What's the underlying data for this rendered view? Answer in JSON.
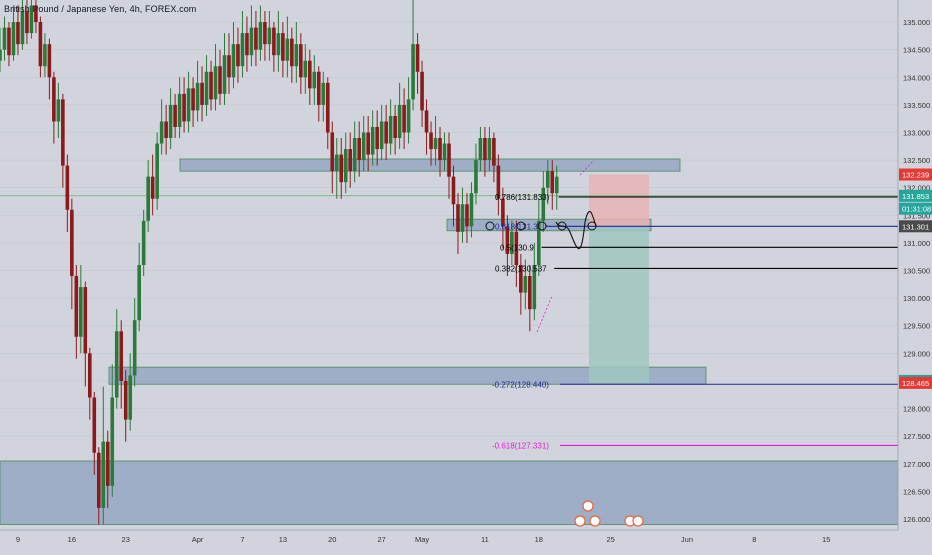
{
  "header": {
    "symbol_title": "British Pound / Japanese Yen, 4h, FOREX.com"
  },
  "colors": {
    "background": "#d1d4dc",
    "up_candle": "#2a7a3a",
    "down_candle": "#8b1a1a",
    "zone_fill": "#8da2c0",
    "zone_border": "#4a8a5a",
    "stop_fill": "#e9b3b5",
    "target_fill": "#9fc7c0",
    "fib_line": "#000000",
    "fib_blue": "#1e2a8f",
    "fib_magenta": "#e020d0",
    "price_red": "#e53935",
    "price_green": "#26a69a"
  },
  "chart_data": {
    "type": "candlestick",
    "symbol": "British Pound / Japanese Yen",
    "interval": "4h",
    "source": "FOREX.com",
    "ylim": [
      125.8,
      135.4
    ],
    "x_range": [
      0,
      100
    ],
    "x_ticks": [
      {
        "label": "9",
        "x": 2
      },
      {
        "label": "16",
        "x": 8
      },
      {
        "label": "23",
        "x": 14
      },
      {
        "label": "Apr",
        "x": 22
      },
      {
        "label": "7",
        "x": 27
      },
      {
        "label": "13",
        "x": 31.5
      },
      {
        "label": "20",
        "x": 37
      },
      {
        "label": "27",
        "x": 42.5
      },
      {
        "label": "May",
        "x": 47
      },
      {
        "label": "11",
        "x": 54
      },
      {
        "label": "18",
        "x": 60
      },
      {
        "label": "25",
        "x": 68
      },
      {
        "label": "Jun",
        "x": 76.5
      },
      {
        "label": "8",
        "x": 84
      },
      {
        "label": "15",
        "x": 92
      }
    ],
    "y_ticks": [
      "135.000",
      "134.500",
      "134.000",
      "133.500",
      "133.000",
      "132.500",
      "132.000",
      "131.500",
      "131.000",
      "130.500",
      "130.000",
      "129.500",
      "129.000",
      "128.500",
      "128.000",
      "127.500",
      "127.000",
      "126.500",
      "126.000"
    ],
    "price_labels": [
      {
        "text": "132.239",
        "value": 132.239,
        "color": "#e53935"
      },
      {
        "text": "131.853",
        "value": 131.853,
        "color": "#26a69a"
      },
      {
        "text": "01:31:08",
        "value": 131.62,
        "color": "#26a69a"
      },
      {
        "text": "131.301",
        "value": 131.301,
        "color": "#4a4a4a"
      },
      {
        "text": "128.500",
        "value": 128.5,
        "color": "#26a69a"
      },
      {
        "text": "128.465",
        "value": 128.465,
        "color": "#e53935"
      }
    ],
    "fib_levels": [
      {
        "label": "0.786(131.833)",
        "value": 131.833,
        "color": "#000000"
      },
      {
        "label": "0.618(131.3",
        "value": 131.301,
        "color": "#1e2a8f"
      },
      {
        "label": "0.5(130.9",
        "value": 130.92,
        "color": "#000000"
      },
      {
        "label": "0.382(130.537",
        "value": 130.537,
        "color": "#000000"
      },
      {
        "label": "-0.272(128.440)",
        "value": 128.44,
        "color": "#1e2a8f"
      },
      {
        "label": "-0.618(127.331)",
        "value": 127.331,
        "color": "#e020d0"
      }
    ],
    "zones": [
      {
        "name": "resistance-zone",
        "low": 132.3,
        "high": 132.52
      },
      {
        "name": "entry-zone",
        "low": 131.22,
        "high": 131.43
      },
      {
        "name": "target-zone",
        "low": 128.44,
        "high": 128.75
      },
      {
        "name": "lower-zone",
        "low": 125.9,
        "high": 127.05
      }
    ],
    "position": {
      "entry": 131.301,
      "stop": 132.239,
      "target": 128.465
    },
    "candles": [
      [
        0,
        134.3,
        134.5,
        134.1,
        134.9
      ],
      [
        0.5,
        134.5,
        134.9,
        134.3,
        135.1
      ],
      [
        1,
        134.9,
        134.4,
        134.2,
        135.0
      ],
      [
        1.5,
        134.4,
        135.0,
        134.3,
        135.3
      ],
      [
        2,
        135.0,
        134.6,
        134.4,
        135.3
      ],
      [
        2.5,
        134.6,
        135.2,
        134.5,
        135.4
      ],
      [
        3,
        135.2,
        134.8,
        134.6,
        135.4
      ],
      [
        3.5,
        134.8,
        135.3,
        134.7,
        135.4
      ],
      [
        4,
        135.3,
        135.0,
        134.8,
        135.4
      ],
      [
        4.5,
        135.0,
        134.2,
        134.0,
        135.1
      ],
      [
        5,
        134.2,
        134.6,
        134.0,
        134.8
      ],
      [
        5.5,
        134.6,
        134.0,
        133.6,
        134.7
      ],
      [
        6,
        134.0,
        133.2,
        132.8,
        134.1
      ],
      [
        6.5,
        133.2,
        133.6,
        132.9,
        133.9
      ],
      [
        7,
        133.6,
        132.4,
        132.0,
        133.7
      ],
      [
        7.5,
        132.4,
        131.6,
        131.2,
        132.6
      ],
      [
        8,
        131.6,
        130.4,
        129.8,
        131.8
      ],
      [
        8.5,
        130.4,
        129.3,
        128.9,
        130.6
      ],
      [
        9,
        129.3,
        130.2,
        129.0,
        130.6
      ],
      [
        9.5,
        130.2,
        129.0,
        128.4,
        130.3
      ],
      [
        10,
        129.0,
        128.2,
        127.8,
        129.1
      ],
      [
        10.5,
        128.2,
        127.2,
        126.8,
        128.3
      ],
      [
        11,
        127.2,
        126.2,
        125.9,
        127.3
      ],
      [
        11.5,
        126.2,
        127.4,
        125.9,
        128.4
      ],
      [
        12,
        127.4,
        126.6,
        126.2,
        127.6
      ],
      [
        12.5,
        126.6,
        128.2,
        126.4,
        128.8
      ],
      [
        13,
        128.2,
        129.4,
        128.0,
        129.8
      ],
      [
        13.5,
        129.4,
        128.5,
        128.0,
        129.6
      ],
      [
        14,
        128.5,
        127.8,
        127.4,
        128.7
      ],
      [
        14.5,
        127.8,
        128.6,
        127.6,
        129.0
      ],
      [
        15,
        128.6,
        129.6,
        128.4,
        130.0
      ],
      [
        15.5,
        129.6,
        130.6,
        129.4,
        131.0
      ],
      [
        16,
        130.6,
        131.4,
        130.4,
        131.6
      ],
      [
        16.5,
        131.4,
        132.2,
        131.2,
        132.5
      ],
      [
        17,
        132.2,
        131.8,
        131.5,
        132.6
      ],
      [
        17.5,
        131.8,
        132.8,
        131.6,
        133.0
      ],
      [
        18,
        132.8,
        133.2,
        132.6,
        133.6
      ],
      [
        18.5,
        133.2,
        132.9,
        132.6,
        133.5
      ],
      [
        19,
        132.9,
        133.5,
        132.7,
        133.8
      ],
      [
        19.5,
        133.5,
        133.1,
        132.9,
        133.7
      ],
      [
        20,
        133.1,
        133.7,
        132.9,
        134.0
      ],
      [
        20.5,
        133.7,
        133.2,
        133.0,
        134.0
      ],
      [
        21,
        133.2,
        133.8,
        133.0,
        134.1
      ],
      [
        21.5,
        133.8,
        133.4,
        133.1,
        134.0
      ],
      [
        22,
        133.4,
        133.9,
        133.2,
        134.3
      ],
      [
        22.5,
        133.9,
        133.5,
        133.2,
        134.2
      ],
      [
        23,
        133.5,
        134.1,
        133.3,
        134.4
      ],
      [
        23.5,
        134.1,
        133.6,
        133.4,
        134.3
      ],
      [
        24,
        133.6,
        134.2,
        133.4,
        134.6
      ],
      [
        24.5,
        134.2,
        133.7,
        133.5,
        134.5
      ],
      [
        25,
        133.7,
        134.4,
        133.5,
        134.8
      ],
      [
        25.5,
        134.4,
        134.0,
        133.7,
        134.8
      ],
      [
        26,
        134.0,
        134.6,
        133.8,
        135.0
      ],
      [
        26.5,
        134.6,
        134.2,
        133.9,
        134.9
      ],
      [
        27,
        134.2,
        134.8,
        134.0,
        135.2
      ],
      [
        27.5,
        134.8,
        134.4,
        134.1,
        135.1
      ],
      [
        28,
        134.4,
        134.9,
        134.2,
        135.3
      ],
      [
        28.5,
        134.9,
        134.5,
        134.2,
        135.2
      ],
      [
        29,
        134.5,
        135.0,
        134.3,
        135.3
      ],
      [
        29.5,
        135.0,
        134.6,
        134.3,
        135.2
      ],
      [
        30,
        134.6,
        134.9,
        134.3,
        135.2
      ],
      [
        30.5,
        134.9,
        134.4,
        134.1,
        135.0
      ],
      [
        31,
        134.4,
        134.8,
        134.1,
        135.2
      ],
      [
        31.5,
        134.8,
        134.3,
        134.0,
        135.0
      ],
      [
        32,
        134.3,
        134.7,
        134.0,
        135.1
      ],
      [
        32.5,
        134.7,
        134.2,
        133.9,
        134.9
      ],
      [
        33,
        134.2,
        134.6,
        133.9,
        135.0
      ],
      [
        33.5,
        134.6,
        134.0,
        133.7,
        134.8
      ],
      [
        34,
        134.0,
        134.3,
        133.7,
        134.6
      ],
      [
        34.5,
        134.3,
        133.8,
        133.5,
        134.5
      ],
      [
        35,
        133.8,
        134.1,
        133.5,
        134.4
      ],
      [
        35.5,
        134.1,
        133.5,
        133.2,
        134.2
      ],
      [
        36,
        133.5,
        133.9,
        133.2,
        134.1
      ],
      [
        36.5,
        133.9,
        133.0,
        132.7,
        134.0
      ],
      [
        37,
        133.0,
        132.3,
        131.9,
        133.2
      ],
      [
        37.5,
        132.3,
        132.6,
        131.8,
        132.9
      ],
      [
        38,
        132.6,
        132.1,
        131.8,
        132.9
      ],
      [
        38.5,
        132.1,
        132.7,
        131.9,
        133.0
      ],
      [
        39,
        132.7,
        132.3,
        132.0,
        133.0
      ],
      [
        39.5,
        132.3,
        132.9,
        132.1,
        133.2
      ],
      [
        40,
        132.9,
        132.5,
        132.2,
        133.2
      ],
      [
        40.5,
        132.5,
        133.0,
        132.3,
        133.3
      ],
      [
        41,
        133.0,
        132.6,
        132.3,
        133.3
      ],
      [
        41.5,
        132.6,
        133.1,
        132.4,
        133.4
      ],
      [
        42,
        133.1,
        132.7,
        132.4,
        133.4
      ],
      [
        42.5,
        132.7,
        133.2,
        132.5,
        133.5
      ],
      [
        43,
        133.2,
        132.8,
        132.5,
        133.5
      ],
      [
        43.5,
        132.8,
        133.3,
        132.6,
        133.6
      ],
      [
        44,
        133.3,
        132.9,
        132.6,
        133.5
      ],
      [
        44.5,
        132.9,
        133.5,
        132.7,
        133.9
      ],
      [
        45,
        133.5,
        133.0,
        132.7,
        133.8
      ],
      [
        45.5,
        133.0,
        133.6,
        132.8,
        134.0
      ],
      [
        46,
        133.6,
        134.6,
        133.4,
        135.4
      ],
      [
        46.5,
        134.6,
        134.1,
        133.7,
        134.8
      ],
      [
        47,
        134.1,
        133.4,
        133.1,
        134.3
      ],
      [
        47.5,
        133.4,
        133.0,
        132.6,
        133.6
      ],
      [
        48,
        133.0,
        132.7,
        132.4,
        133.2
      ],
      [
        48.5,
        132.7,
        132.9,
        132.4,
        133.3
      ],
      [
        49,
        132.9,
        132.5,
        132.2,
        133.1
      ],
      [
        49.5,
        132.5,
        132.8,
        132.3,
        133.0
      ],
      [
        50,
        132.8,
        132.2,
        131.8,
        133.0
      ],
      [
        50.5,
        132.2,
        131.7,
        131.3,
        132.4
      ],
      [
        51,
        131.7,
        131.2,
        130.8,
        131.9
      ],
      [
        51.5,
        131.2,
        131.7,
        131.0,
        132.0
      ],
      [
        52,
        131.7,
        131.3,
        131.0,
        131.9
      ],
      [
        52.5,
        131.3,
        131.9,
        131.1,
        132.1
      ],
      [
        53,
        131.9,
        132.5,
        131.7,
        132.8
      ],
      [
        53.5,
        132.5,
        132.9,
        132.3,
        133.1
      ],
      [
        54,
        132.9,
        132.5,
        132.2,
        133.1
      ],
      [
        54.5,
        132.5,
        132.9,
        132.3,
        133.1
      ],
      [
        55,
        132.9,
        132.4,
        132.1,
        133.0
      ],
      [
        55.5,
        132.4,
        131.8,
        131.5,
        132.6
      ],
      [
        56,
        131.8,
        131.3,
        130.9,
        132.0
      ],
      [
        56.5,
        131.3,
        130.8,
        130.4,
        131.5
      ],
      [
        57,
        130.8,
        131.2,
        130.6,
        131.4
      ],
      [
        57.5,
        131.2,
        130.6,
        130.2,
        131.4
      ],
      [
        58,
        130.6,
        130.1,
        129.7,
        130.8
      ],
      [
        58.5,
        130.1,
        130.4,
        129.8,
        130.7
      ],
      [
        59,
        130.4,
        129.8,
        129.4,
        130.6
      ],
      [
        59.5,
        129.8,
        130.6,
        129.6,
        131.0
      ],
      [
        60,
        130.6,
        131.4,
        130.4,
        131.8
      ],
      [
        60.5,
        131.4,
        132.0,
        131.2,
        132.3
      ],
      [
        61,
        132.0,
        132.3,
        131.7,
        132.5
      ],
      [
        61.5,
        132.3,
        131.9,
        131.6,
        132.5
      ],
      [
        62,
        131.9,
        132.2,
        131.6,
        132.4
      ]
    ]
  }
}
